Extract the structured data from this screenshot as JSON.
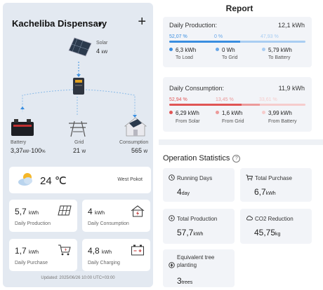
{
  "header": {
    "title": "Kacheliba Dispensary",
    "caret": "▼",
    "add": "+"
  },
  "flow": {
    "solar": {
      "label": "Solar",
      "value": "4",
      "unit": "kW"
    },
    "battery": {
      "label": "Battery",
      "value": "3,37",
      "unit": "kW",
      "soc": "100",
      "soc_unit": "%"
    },
    "grid": {
      "label": "Grid",
      "value": "21",
      "unit": "W"
    },
    "consumption": {
      "label": "Consumption",
      "value": "565",
      "unit": "W"
    }
  },
  "weather": {
    "temperature": "24 ℃",
    "location": "West Pokot"
  },
  "tiles": [
    {
      "value": "5,7",
      "unit": "kWh",
      "label": "Daily Production"
    },
    {
      "value": "4",
      "unit": "kWh",
      "label": "Daily Consumption"
    },
    {
      "value": "1,7",
      "unit": "kWh",
      "label": "Daily Purchase"
    },
    {
      "value": "4,8",
      "unit": "kWh",
      "label": "Daily Charging"
    }
  ],
  "updated": "Updated: 2025/06/26 10:00 UTC+03:00",
  "report": {
    "title": "Report",
    "production": {
      "label": "Daily Production:",
      "total": "12,1 kWh",
      "items": [
        {
          "pct": "52,07 %",
          "value": "6,3 kWh",
          "label": "To Load",
          "color": "#3a8ee0",
          "fraction": 0.5207
        },
        {
          "pct": "0 %",
          "value": "0 Wh",
          "label": "To Grid",
          "color": "#6aa8e8",
          "fraction": 0.0
        },
        {
          "pct": "47,93 %",
          "value": "5,79 kWh",
          "label": "To Battery",
          "color": "#a9cdf2",
          "fraction": 0.4793
        }
      ]
    },
    "consumption": {
      "label": "Daily Consumption:",
      "total": "11,9 kWh",
      "items": [
        {
          "pct": "52,94 %",
          "value": "6,29 kWh",
          "label": "From Solar",
          "color": "#e05555",
          "fraction": 0.5294
        },
        {
          "pct": "13,45 %",
          "value": "1,6 kWh",
          "label": "From Grid",
          "color": "#ec9a9a",
          "fraction": 0.1345
        },
        {
          "pct": "33,61 %",
          "value": "3,99 kWh",
          "label": "From Battery",
          "color": "#f6cccc",
          "fraction": 0.3361
        }
      ]
    }
  },
  "operations": {
    "title": "Operation Statistics",
    "help": "?",
    "stats": [
      {
        "label": "Running Days",
        "value": "4",
        "unit": "day",
        "icon": "clock-icon"
      },
      {
        "label": "Total Purchase",
        "value": "6,7",
        "unit": "kWh",
        "icon": "cart-icon"
      },
      {
        "label": "Total Production",
        "value": "57,7",
        "unit": "kWh",
        "icon": "bolt-icon"
      },
      {
        "label": "CO2 Reduction",
        "value": "45,75",
        "unit": "kg",
        "icon": "cloud-icon"
      },
      {
        "label": "Equivalent tree planting",
        "value": "3",
        "unit": "trees",
        "icon": "tree-icon"
      }
    ]
  }
}
